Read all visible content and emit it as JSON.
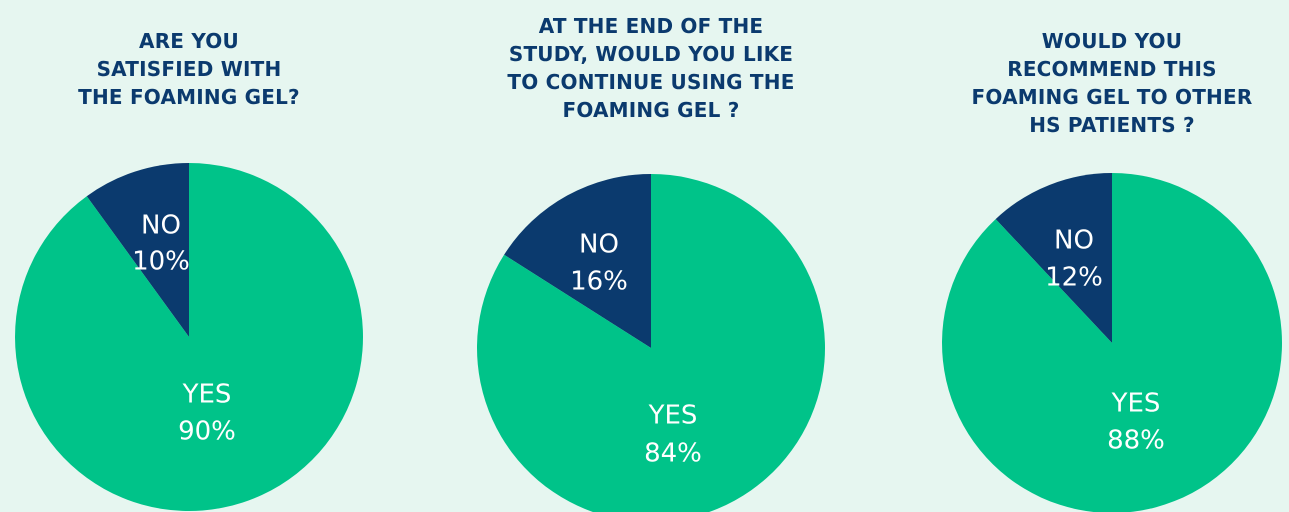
{
  "colors": {
    "background": "#e6f6f0",
    "yes": "#00c389",
    "no": "#0b3a6e",
    "title": "#0b3a6e",
    "label": "#ffffff"
  },
  "chart_data": [
    {
      "type": "pie",
      "title_lines": [
        "ARE YOU",
        "SATISFIED WITH",
        "THE FOAMING GEL?"
      ],
      "slices": [
        {
          "category": "NO",
          "percent_label": "10%",
          "value": 10
        },
        {
          "category": "YES",
          "percent_label": "90%",
          "value": 90
        }
      ]
    },
    {
      "type": "pie",
      "title_lines": [
        "AT THE END OF THE",
        "STUDY, WOULD YOU LIKE",
        "TO CONTINUE USING THE",
        "FOAMING GEL ?"
      ],
      "slices": [
        {
          "category": "NO",
          "percent_label": "16%",
          "value": 16
        },
        {
          "category": "YES",
          "percent_label": "84%",
          "value": 84
        }
      ]
    },
    {
      "type": "pie",
      "title_lines": [
        "WOULD YOU",
        "RECOMMEND THIS",
        "FOAMING GEL TO OTHER",
        "HS PATIENTS ?"
      ],
      "slices": [
        {
          "category": "NO",
          "percent_label": "12%",
          "value": 12
        },
        {
          "category": "YES",
          "percent_label": "88%",
          "value": 88
        }
      ]
    }
  ]
}
